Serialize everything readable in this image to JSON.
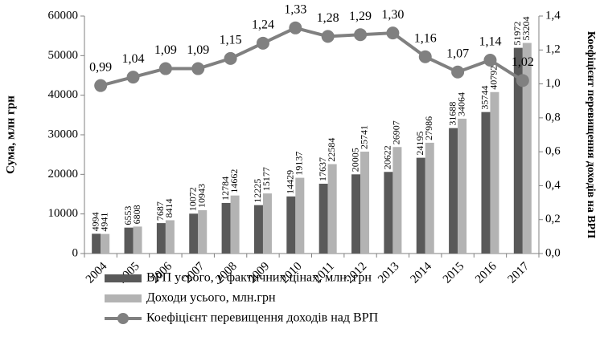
{
  "chart_data": {
    "type": "bar",
    "categories": [
      "2004",
      "2005",
      "2006",
      "2007",
      "2008",
      "2009",
      "2010",
      "2011",
      "2012",
      "2013",
      "2014",
      "2015",
      "2016",
      "2017"
    ],
    "series": [
      {
        "name": "ВРП усього, у фактичних цінах, млн. грн",
        "color": "#595959",
        "type": "bar",
        "values": [
          4994,
          6553,
          7687,
          10072,
          12784,
          12225,
          14429,
          17637,
          20005,
          20622,
          24195,
          31688,
          35744,
          51972
        ]
      },
      {
        "name": "Доходи усього, млн.грн",
        "color": "#b3b3b3",
        "type": "bar",
        "values": [
          4941,
          6808,
          8414,
          10943,
          14662,
          15177,
          19137,
          22584,
          25741,
          26907,
          27986,
          34064,
          40792,
          53204
        ]
      },
      {
        "name": "Коефіцієнт  перевищення доходів над ВРП",
        "color": "#808080",
        "type": "line",
        "axis": "y2",
        "values": [
          0.99,
          1.04,
          1.09,
          1.09,
          1.15,
          1.24,
          1.33,
          1.28,
          1.29,
          1.3,
          1.16,
          1.07,
          1.14,
          1.02
        ],
        "value_labels": [
          "0,99",
          "1,04",
          "1,09",
          "1,09",
          "1,15",
          "1,24",
          "1,33",
          "1,28",
          "1,29",
          "1,30",
          "1,16",
          "1,07",
          "1,14",
          "1,02"
        ]
      }
    ],
    "ylabel": "Сума, млн грн",
    "y2label": "Коефіцієнт перевищення доходів на ВРП",
    "ylim": [
      0,
      60000
    ],
    "yticks": [
      0,
      10000,
      20000,
      30000,
      40000,
      50000,
      60000
    ],
    "y2lim": [
      0,
      1.4
    ],
    "y2ticks": [
      {
        "value": 0,
        "label": "0,0"
      },
      {
        "value": 0.2,
        "label": "0,2"
      },
      {
        "value": 0.4,
        "label": "0,4"
      },
      {
        "value": 0.6,
        "label": "0,6"
      },
      {
        "value": 0.8,
        "label": "0,8"
      },
      {
        "value": 1.0,
        "label": "1,0"
      },
      {
        "value": 1.2,
        "label": "1,2"
      },
      {
        "value": 1.4,
        "label": "1,4"
      }
    ],
    "legend": "bottom"
  }
}
